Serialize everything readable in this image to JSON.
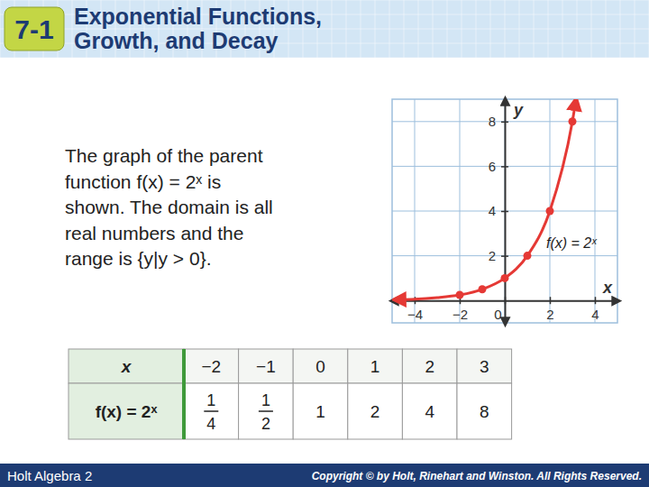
{
  "header": {
    "badge": "7-1",
    "title_lines": [
      "Exponential Functions,",
      "Growth, and Decay"
    ]
  },
  "body": {
    "lines": [
      "The graph of the parent",
      "function f(x) = 2ˣ is",
      "shown. The domain is all",
      "real numbers and the",
      "range is {y|y > 0}."
    ]
  },
  "chart_data": {
    "type": "line",
    "x_label": "x",
    "y_label": "y",
    "annotations": [
      "f(x) = 2ˣ"
    ],
    "xlim": [
      -5,
      5
    ],
    "ylim": [
      -1,
      9
    ],
    "xticks": [
      {
        "value": -4,
        "label": "−4"
      },
      {
        "value": -2,
        "label": "−2"
      },
      0,
      2,
      4
    ],
    "yticks": [
      2,
      4,
      6,
      8
    ],
    "grid": true,
    "series": [
      {
        "type": "line",
        "color": "#e53935",
        "line_style": "solid",
        "x": [
          -4.8,
          -4,
          -3,
          -2,
          -1,
          0,
          1,
          2,
          3,
          3.15
        ],
        "values": [
          0.04,
          0.06,
          0.13,
          0.25,
          0.5,
          1,
          2,
          4,
          8,
          8.9
        ]
      },
      {
        "type": "scatter",
        "color": "#e53935",
        "marker": "circle",
        "x": [
          -2,
          -1,
          0,
          1,
          2,
          3
        ],
        "values": [
          0.25,
          0.5,
          1,
          2,
          4,
          8
        ]
      }
    ]
  },
  "table": {
    "rows": [
      {
        "header": "x",
        "values": [
          "−2",
          "−1",
          "0",
          "1",
          "2",
          "3"
        ]
      },
      {
        "header": "f(x) = 2ˣ",
        "values": [
          {
            "num": "1",
            "den": "4"
          },
          {
            "num": "1",
            "den": "2"
          },
          "1",
          "2",
          "4",
          "8"
        ]
      }
    ]
  },
  "footer": {
    "left": "Holt Algebra 2",
    "right": "Copyright © by Holt, Rinehart and Winston. All Rights Reserved."
  }
}
